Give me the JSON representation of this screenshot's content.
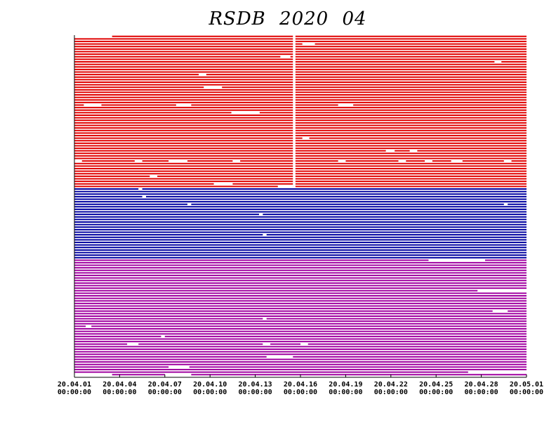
{
  "chart_data": {
    "type": "availability",
    "title": "RSDB 2020 04",
    "xlim": [
      "20.04.01 00:00:00",
      "20.05.01 00:00:00"
    ],
    "xticks": [
      {
        "value": "20.04.01 00:00:00",
        "label": "20.04.01\n00:00:00"
      },
      {
        "value": "20.04.04 00:00:00",
        "label": "20.04.04\n00:00:00"
      },
      {
        "value": "20.04.07 00:00:00",
        "label": "20.04.07\n00:00:00"
      },
      {
        "value": "20.04.10 00:00:00",
        "label": "20.04.10\n00:00:00"
      },
      {
        "value": "20.04.13 00:00:00",
        "label": "20.04.13\n00:00:00"
      },
      {
        "value": "20.04.16 00:00:00",
        "label": "20.04.16\n00:00:00"
      },
      {
        "value": "20.04.19 00:00:00",
        "label": "20.04.19\n00:00:00"
      },
      {
        "value": "20.04.22 00:00:00",
        "label": "20.04.22\n00:00:00"
      },
      {
        "value": "20.04.25 00:00:00",
        "label": "20.04.25\n00:00:00"
      },
      {
        "value": "20.04.28 00:00:00",
        "label": "20.04.28\n00:00:00"
      },
      {
        "value": "20.05.01 00:00:00",
        "label": "20.05.01\n00:00:00"
      }
    ],
    "groups": [
      {
        "color": "#e00000",
        "gaps": [
          [
            "20.04.15 12:00:00",
            "20.04.15 16:00:00"
          ]
        ],
        "rows": [
          [
            [
              "20.04.01 00:00:00",
              "20.04.03 12:00:00"
            ]
          ],
          [],
          [],
          [
            [
              "20.04.16 03:00:00",
              "20.04.16 23:00:00"
            ]
          ],
          [],
          [],
          [],
          [],
          [
            [
              "20.04.14 16:00:00",
              "20.04.15 08:00:00"
            ]
          ],
          [],
          [
            [
              "20.04.28 21:00:00",
              "20.04.29 08:00:00"
            ]
          ],
          [],
          [],
          [],
          [],
          [
            [
              "20.04.09 06:00:00",
              "20.04.09 18:00:00"
            ]
          ],
          [],
          [],
          [],
          [],
          [
            [
              "20.04.09 14:00:00",
              "20.04.10 19:00:00"
            ]
          ],
          [],
          [],
          [],
          [],
          [],
          [],
          [
            [
              "20.04.01 15:00:00",
              "20.04.02 19:00:00"
            ],
            [
              "20.04.07 18:00:00",
              "20.04.08 18:00:00"
            ],
            [
              "20.04.18 12:00:00",
              "20.04.19 12:00:00"
            ]
          ],
          [],
          [],
          [
            [
              "20.04.11 10:00:00",
              "20.04.13 07:00:00"
            ]
          ],
          [],
          [],
          [],
          [],
          [],
          [],
          [],
          [],
          [],
          [
            [
              "20.04.16 03:00:00",
              "20.04.16 14:00:00"
            ]
          ],
          [],
          [],
          [],
          [],
          [
            [
              "20.04.21 16:00:00",
              "20.04.22 06:00:00"
            ],
            [
              "20.04.23 06:00:00",
              "20.04.23 18:00:00"
            ]
          ],
          [],
          [],
          [],
          [
            [
              "20.04.01 00:00:00",
              "20.04.01 12:00:00"
            ],
            [
              "20.04.05 00:00:00",
              "20.04.05 12:00:00"
            ],
            [
              "20.04.07 06:00:00",
              "20.04.08 12:00:00"
            ],
            [
              "20.04.11 12:00:00",
              "20.04.12 00:00:00"
            ],
            [
              "20.04.18 12:00:00",
              "20.04.19 00:00:00"
            ],
            [
              "20.04.22 12:00:00",
              "20.04.23 00:00:00"
            ],
            [
              "20.04.24 06:00:00",
              "20.04.24 18:00:00"
            ],
            [
              "20.04.26 00:00:00",
              "20.04.26 18:00:00"
            ],
            [
              "20.04.29 12:00:00",
              "20.04.30 00:00:00"
            ]
          ],
          [],
          [],
          [],
          [],
          [],
          [
            [
              "20.04.06 00:00:00",
              "20.04.06 12:00:00"
            ]
          ],
          [],
          [],
          [
            [
              "20.04.10 06:00:00",
              "20.04.11 12:00:00"
            ]
          ],
          [
            [
              "20.04.14 12:00:00",
              "20.04.15 12:00:00"
            ]
          ]
        ]
      },
      {
        "color": "#0000a0",
        "gaps": [],
        "rows": [
          [
            [
              "20.04.05 06:00:00",
              "20.04.05 12:00:00"
            ]
          ],
          [],
          [],
          [
            [
              "20.04.05 12:00:00",
              "20.04.05 18:00:00"
            ]
          ],
          [],
          [],
          [
            [
              "20.04.08 12:00:00",
              "20.04.08 18:00:00"
            ],
            [
              "20.04.29 12:00:00",
              "20.04.29 18:00:00"
            ]
          ],
          [],
          [],
          [],
          [
            [
              "20.04.13 06:00:00",
              "20.04.13 12:00:00"
            ]
          ],
          [],
          [],
          [],
          [],
          [],
          [],
          [],
          [
            [
              "20.04.13 12:00:00",
              "20.04.13 18:00:00"
            ]
          ],
          [],
          [],
          [],
          [],
          [],
          [],
          [],
          [],
          []
        ]
      },
      {
        "color": "#a000a0",
        "gaps": [],
        "rows": [
          [
            [
              "20.04.24 12:00:00",
              "20.04.28 06:00:00"
            ]
          ],
          [],
          [],
          [],
          [],
          [],
          [],
          [],
          [],
          [],
          [],
          [],
          [
            [
              "20.04.27 18:00:00",
              "20.05.01 00:00:00"
            ]
          ],
          [],
          [],
          [],
          [],
          [],
          [],
          [],
          [
            [
              "20.04.28 18:00:00",
              "20.04.29 18:00:00"
            ]
          ],
          [],
          [],
          [
            [
              "20.04.13 12:00:00",
              "20.04.13 18:00:00"
            ]
          ],
          [],
          [],
          [
            [
              "20.04.01 18:00:00",
              "20.04.02 03:00:00"
            ]
          ],
          [],
          [],
          [],
          [
            [
              "20.04.06 18:00:00",
              "20.04.07 00:00:00"
            ]
          ],
          [],
          [],
          [
            [
              "20.04.04 12:00:00",
              "20.04.05 06:00:00"
            ],
            [
              "20.04.13 12:00:00",
              "20.04.14 00:00:00"
            ],
            [
              "20.04.16 00:00:00",
              "20.04.16 12:00:00"
            ]
          ],
          [],
          [],
          [],
          [],
          [
            [
              "20.04.13 18:00:00",
              "20.04.15 12:00:00"
            ]
          ],
          [],
          [],
          [],
          [
            [
              "20.04.07 06:00:00",
              "20.04.08 15:00:00"
            ]
          ],
          [],
          [
            [
              "20.04.27 03:00:00",
              "20.05.01 00:00:00"
            ]
          ],
          [
            [
              "20.04.01 00:00:00",
              "20.04.03 12:00:00"
            ],
            [
              "20.04.07 00:00:00",
              "20.04.08 18:00:00"
            ]
          ]
        ]
      }
    ]
  }
}
